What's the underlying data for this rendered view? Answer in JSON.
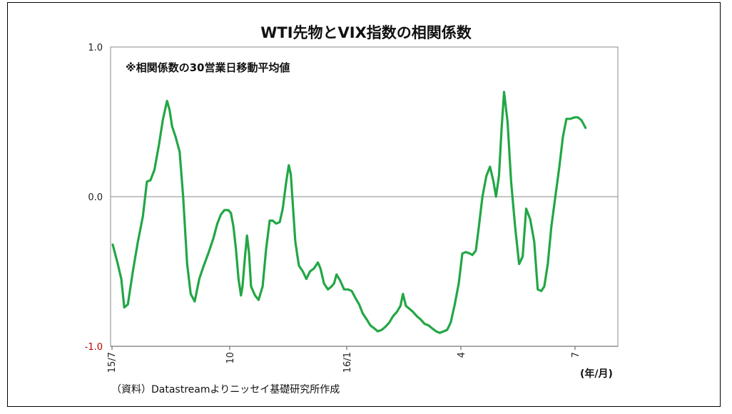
{
  "chart_data": {
    "type": "line",
    "title": "WTI先物とVIX指数の相関係数",
    "annotation": "※相関係数の30営業日移動平均値",
    "source": "（資料）Datastreamよりニッセイ基礎研究所作成",
    "x_unit": "(年/月)",
    "x_tick_labels": [
      "15/7",
      "10",
      "16/1",
      "4",
      "7"
    ],
    "y_tick_labels": [
      "1.0",
      "0.0",
      "-1.0"
    ],
    "ylim": [
      -1.0,
      1.0
    ],
    "grid": "horizontal",
    "colors": {
      "line": "#22a745",
      "negative_tick": "#c00000"
    },
    "series": [
      {
        "values": [
          [
            0.0,
            -0.32
          ],
          [
            0.01,
            -0.45
          ],
          [
            0.017,
            -0.55
          ],
          [
            0.023,
            -0.74
          ],
          [
            0.03,
            -0.72
          ],
          [
            0.04,
            -0.5
          ],
          [
            0.05,
            -0.3
          ],
          [
            0.06,
            -0.13
          ],
          [
            0.068,
            0.1
          ],
          [
            0.075,
            0.11
          ],
          [
            0.083,
            0.18
          ],
          [
            0.092,
            0.35
          ],
          [
            0.1,
            0.52
          ],
          [
            0.108,
            0.64
          ],
          [
            0.113,
            0.58
          ],
          [
            0.118,
            0.47
          ],
          [
            0.125,
            0.4
          ],
          [
            0.133,
            0.3
          ],
          [
            0.14,
            0.0
          ],
          [
            0.148,
            -0.45
          ],
          [
            0.155,
            -0.65
          ],
          [
            0.163,
            -0.7
          ],
          [
            0.172,
            -0.55
          ],
          [
            0.18,
            -0.47
          ],
          [
            0.19,
            -0.38
          ],
          [
            0.2,
            -0.28
          ],
          [
            0.208,
            -0.18
          ],
          [
            0.215,
            -0.12
          ],
          [
            0.222,
            -0.09
          ],
          [
            0.23,
            -0.09
          ],
          [
            0.235,
            -0.11
          ],
          [
            0.24,
            -0.2
          ],
          [
            0.245,
            -0.35
          ],
          [
            0.25,
            -0.55
          ],
          [
            0.255,
            -0.66
          ],
          [
            0.258,
            -0.6
          ],
          [
            0.263,
            -0.4
          ],
          [
            0.267,
            -0.26
          ],
          [
            0.271,
            -0.38
          ],
          [
            0.275,
            -0.6
          ],
          [
            0.283,
            -0.66
          ],
          [
            0.29,
            -0.69
          ],
          [
            0.298,
            -0.6
          ],
          [
            0.305,
            -0.35
          ],
          [
            0.312,
            -0.16
          ],
          [
            0.318,
            -0.16
          ],
          [
            0.325,
            -0.18
          ],
          [
            0.332,
            -0.17
          ],
          [
            0.338,
            -0.08
          ],
          [
            0.345,
            0.1
          ],
          [
            0.35,
            0.21
          ],
          [
            0.354,
            0.15
          ],
          [
            0.358,
            -0.05
          ],
          [
            0.363,
            -0.3
          ],
          [
            0.37,
            -0.46
          ],
          [
            0.378,
            -0.5
          ],
          [
            0.385,
            -0.55
          ],
          [
            0.392,
            -0.5
          ],
          [
            0.4,
            -0.48
          ],
          [
            0.408,
            -0.44
          ],
          [
            0.413,
            -0.48
          ],
          [
            0.42,
            -0.58
          ],
          [
            0.428,
            -0.62
          ],
          [
            0.435,
            -0.6
          ],
          [
            0.44,
            -0.58
          ],
          [
            0.445,
            -0.52
          ],
          [
            0.452,
            -0.56
          ],
          [
            0.46,
            -0.62
          ],
          [
            0.468,
            -0.62
          ],
          [
            0.475,
            -0.63
          ],
          [
            0.483,
            -0.68
          ],
          [
            0.49,
            -0.72
          ],
          [
            0.497,
            -0.78
          ],
          [
            0.505,
            -0.82
          ],
          [
            0.512,
            -0.86
          ],
          [
            0.52,
            -0.88
          ],
          [
            0.527,
            -0.9
          ],
          [
            0.535,
            -0.89
          ],
          [
            0.542,
            -0.87
          ],
          [
            0.55,
            -0.84
          ],
          [
            0.557,
            -0.8
          ],
          [
            0.565,
            -0.77
          ],
          [
            0.572,
            -0.73
          ],
          [
            0.577,
            -0.65
          ],
          [
            0.583,
            -0.73
          ],
          [
            0.59,
            -0.75
          ],
          [
            0.597,
            -0.77
          ],
          [
            0.605,
            -0.8
          ],
          [
            0.612,
            -0.82
          ],
          [
            0.62,
            -0.85
          ],
          [
            0.628,
            -0.86
          ],
          [
            0.635,
            -0.88
          ],
          [
            0.643,
            -0.9
          ],
          [
            0.65,
            -0.91
          ],
          [
            0.658,
            -0.9
          ],
          [
            0.665,
            -0.89
          ],
          [
            0.672,
            -0.84
          ],
          [
            0.68,
            -0.72
          ],
          [
            0.688,
            -0.58
          ],
          [
            0.695,
            -0.38
          ],
          [
            0.702,
            -0.37
          ],
          [
            0.71,
            -0.38
          ],
          [
            0.715,
            -0.39
          ],
          [
            0.722,
            -0.36
          ],
          [
            0.728,
            -0.2
          ],
          [
            0.735,
            0.0
          ],
          [
            0.743,
            0.14
          ],
          [
            0.75,
            0.2
          ],
          [
            0.757,
            0.1
          ],
          [
            0.762,
            0.0
          ],
          [
            0.768,
            0.14
          ],
          [
            0.773,
            0.45
          ],
          [
            0.778,
            0.7
          ],
          [
            0.785,
            0.5
          ],
          [
            0.792,
            0.1
          ],
          [
            0.8,
            -0.2
          ],
          [
            0.808,
            -0.45
          ],
          [
            0.815,
            -0.4
          ],
          [
            0.822,
            -0.08
          ],
          [
            0.83,
            -0.15
          ],
          [
            0.838,
            -0.3
          ],
          [
            0.845,
            -0.62
          ],
          [
            0.852,
            -0.63
          ],
          [
            0.858,
            -0.6
          ],
          [
            0.865,
            -0.45
          ],
          [
            0.872,
            -0.2
          ],
          [
            0.88,
            0.0
          ],
          [
            0.888,
            0.2
          ],
          [
            0.895,
            0.4
          ],
          [
            0.902,
            0.52
          ],
          [
            0.91,
            0.52
          ],
          [
            0.918,
            0.53
          ],
          [
            0.925,
            0.53
          ],
          [
            0.932,
            0.51
          ],
          [
            0.94,
            0.46
          ]
        ]
      }
    ]
  }
}
